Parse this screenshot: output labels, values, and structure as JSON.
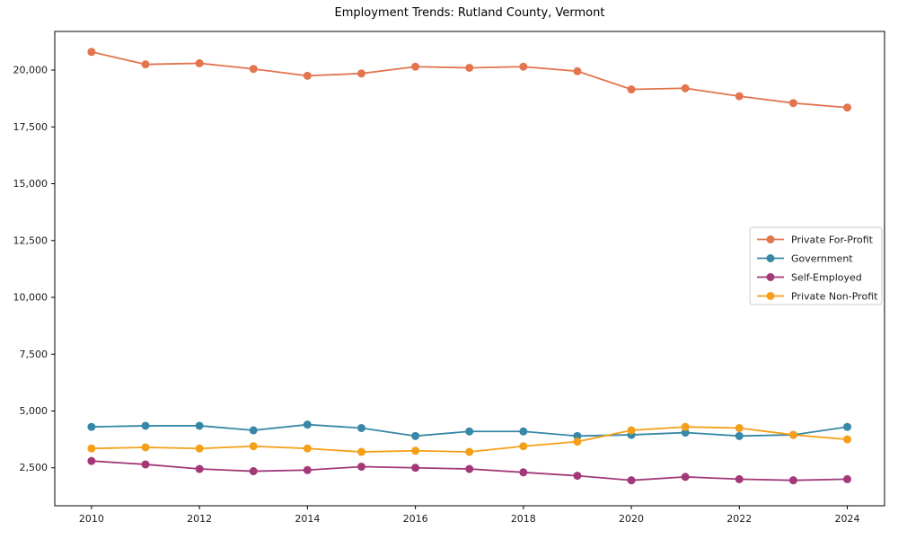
{
  "window": {
    "background": "#ffffff"
  },
  "chart_data": {
    "type": "line",
    "title": "Employment Trends: Rutland County, Vermont",
    "xlabel": "",
    "ylabel": "",
    "grid": false,
    "legend_position": "right-center",
    "x": [
      2010,
      2011,
      2012,
      2013,
      2014,
      2015,
      2016,
      2017,
      2018,
      2019,
      2020,
      2021,
      2022,
      2023,
      2024
    ],
    "xticks": [
      2010,
      2012,
      2014,
      2016,
      2018,
      2020,
      2022,
      2024
    ],
    "yticks": [
      2500,
      5000,
      7500,
      10000,
      12500,
      15000,
      17500,
      20000
    ],
    "xlim": [
      2009.32,
      2024.69
    ],
    "ylim": [
      830,
      21700
    ],
    "axis_color": "#000000",
    "series": [
      {
        "name": "Private For-Profit",
        "color": "#e2754e",
        "values": [
          20800,
          20250,
          20300,
          20050,
          19750,
          19850,
          20150,
          20100,
          20150,
          19950,
          19150,
          19200,
          18850,
          18550,
          18350
        ]
      },
      {
        "name": "Government",
        "color": "#3688a6",
        "values": [
          4300,
          4350,
          4350,
          4150,
          4400,
          4250,
          3900,
          4100,
          4100,
          3900,
          3950,
          4050,
          3900,
          3950,
          4300
        ]
      },
      {
        "name": "Self-Employed",
        "color": "#a23878",
        "values": [
          2800,
          2650,
          2450,
          2350,
          2400,
          2550,
          2500,
          2450,
          2300,
          2150,
          1950,
          2100,
          2000,
          1950,
          2000
        ]
      },
      {
        "name": "Private Non-Profit",
        "color": "#f49f18",
        "values": [
          3350,
          3400,
          3350,
          3450,
          3350,
          3200,
          3250,
          3200,
          3450,
          3650,
          4150,
          4300,
          4250,
          3950,
          3750
        ]
      }
    ]
  }
}
